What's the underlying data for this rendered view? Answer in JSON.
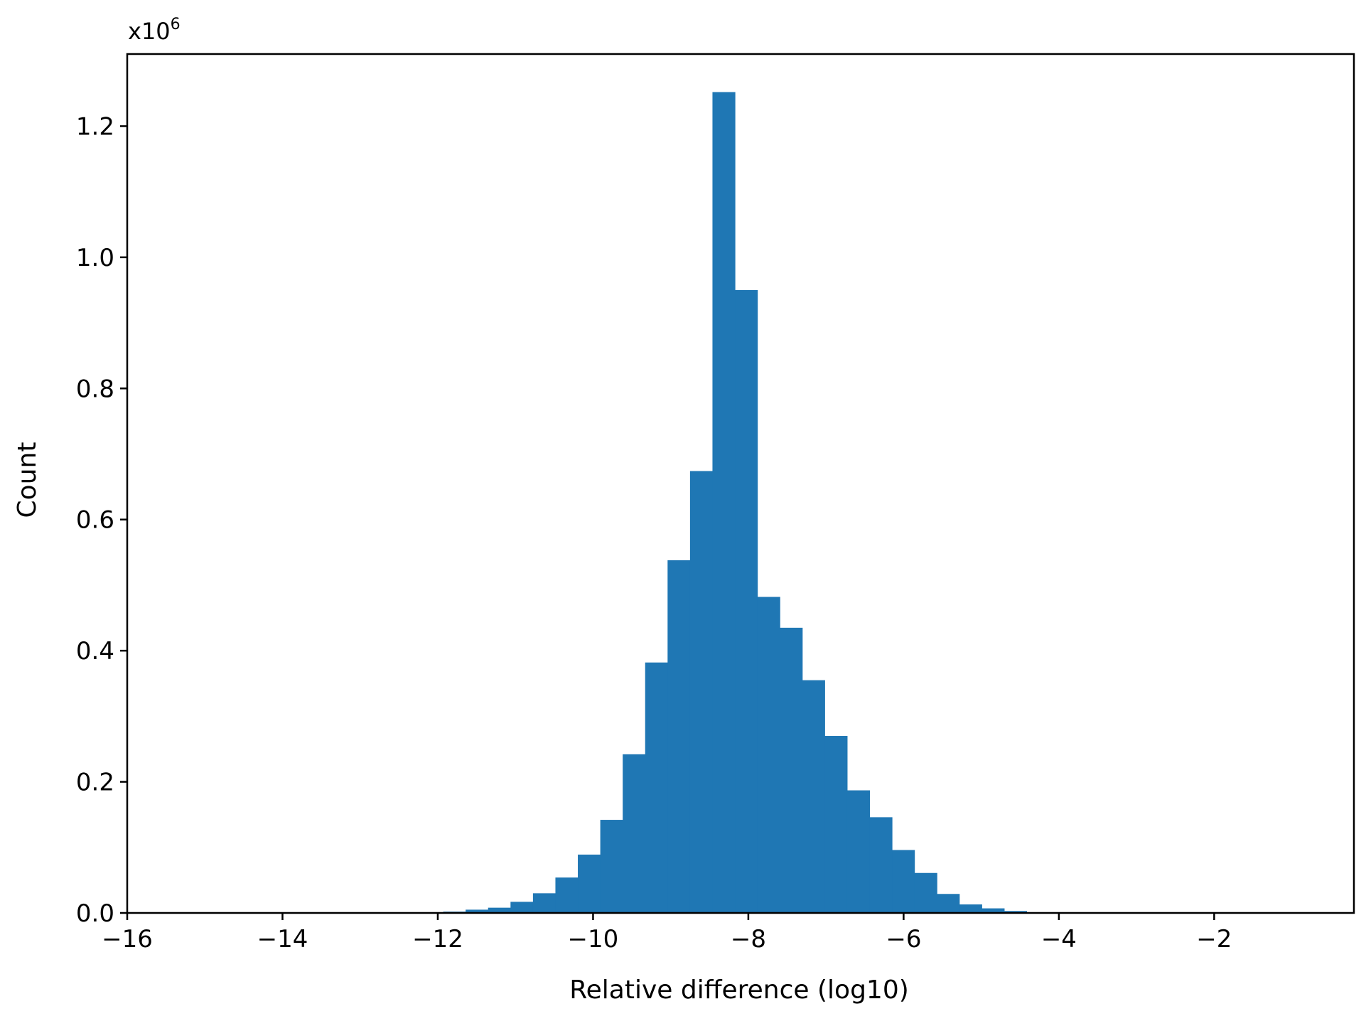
{
  "chart_data": {
    "type": "bar",
    "subtype": "histogram",
    "title": "",
    "xlabel": "Relative difference (log10)",
    "ylabel": "Count",
    "y_multiplier_label": "x10",
    "y_multiplier_exponent": "6",
    "y_multiplier": 1000000,
    "xlim": [
      -16.0,
      -0.2
    ],
    "ylim": [
      0,
      1.31
    ],
    "x_ticks": [
      -16,
      -14,
      -12,
      -10,
      -8,
      -6,
      -4,
      -2
    ],
    "x_tick_labels": [
      "−16",
      "−14",
      "−12",
      "−10",
      "−8",
      "−6",
      "−4",
      "−2"
    ],
    "y_ticks": [
      0.0,
      0.2,
      0.4,
      0.6,
      0.8,
      1.0,
      1.2
    ],
    "y_tick_labels": [
      "0.0",
      "0.2",
      "0.4",
      "0.6",
      "0.8",
      "1.0",
      "1.2"
    ],
    "bin_width": 0.289,
    "bin_edges_start": -11.93,
    "values": [
      0.002,
      0.005,
      0.008,
      0.017,
      0.03,
      0.054,
      0.089,
      0.142,
      0.242,
      0.382,
      0.538,
      0.674,
      1.252,
      0.95,
      0.482,
      0.435,
      0.355,
      0.27,
      0.187,
      0.146,
      0.096,
      0.061,
      0.029,
      0.013,
      0.007,
      0.003,
      0.001
    ],
    "bar_color": "#1f77b4",
    "grid": false,
    "legend": "none"
  }
}
